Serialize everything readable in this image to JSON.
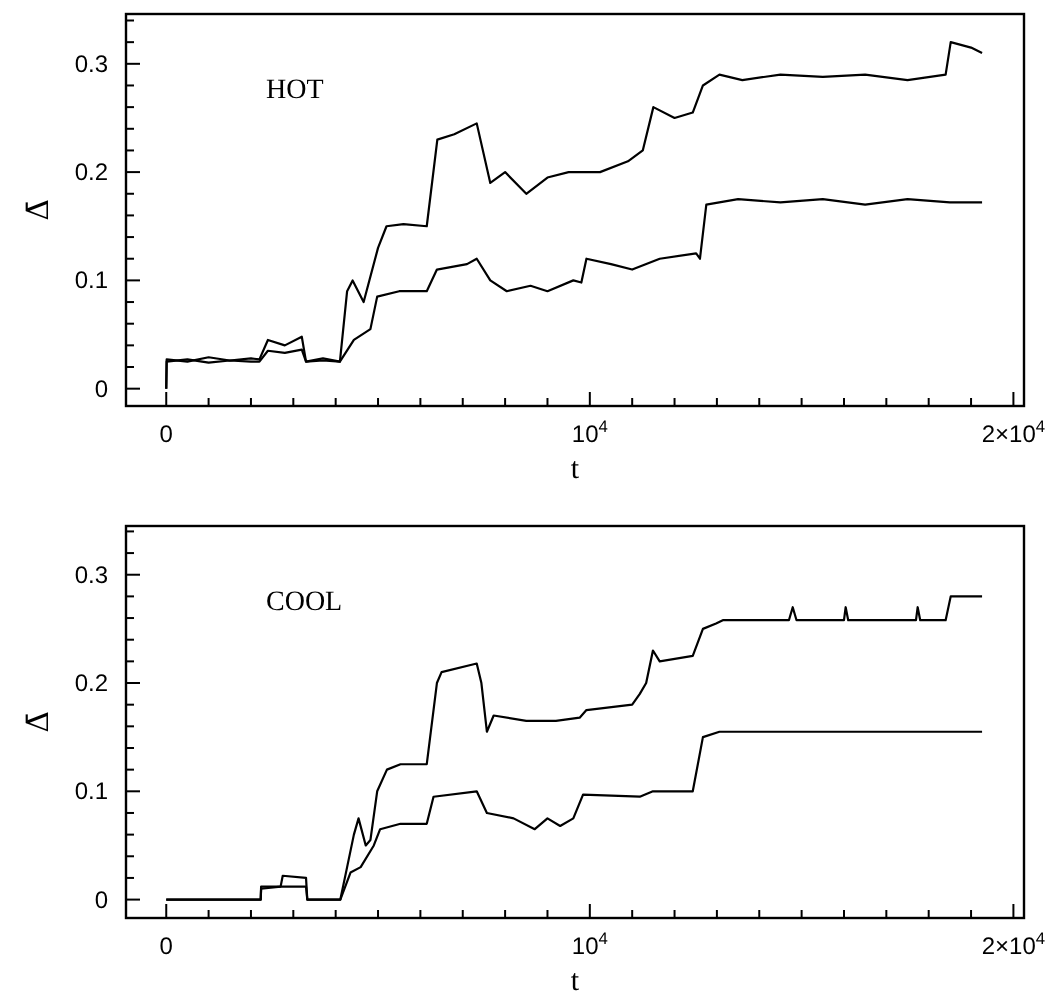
{
  "chart_data": [
    {
      "type": "line",
      "annotations": [
        "HOT"
      ],
      "xlabel": "t",
      "ylabel": "Δ̄",
      "xlim": [
        -950,
        20250
      ],
      "ylim": [
        -0.016,
        0.346
      ],
      "grid": false,
      "line_style": "solid",
      "xticks": [
        0,
        {
          "value": 1000,
          "label": null
        },
        {
          "value": 2000,
          "label": null
        },
        {
          "value": 3000,
          "label": null
        },
        {
          "value": 4000,
          "label": null
        },
        {
          "value": 5000,
          "label": null
        },
        {
          "value": 6000,
          "label": null
        },
        {
          "value": 7000,
          "label": null
        },
        {
          "value": 8000,
          "label": null
        },
        {
          "value": 9000,
          "label": null
        },
        {
          "value": 10000,
          "label": "10$^{4}$"
        },
        {
          "value": 11000,
          "label": null
        },
        {
          "value": 12000,
          "label": null
        },
        {
          "value": 13000,
          "label": null
        },
        {
          "value": 14000,
          "label": null
        },
        {
          "value": 15000,
          "label": null
        },
        {
          "value": 16000,
          "label": null
        },
        {
          "value": 17000,
          "label": null
        },
        {
          "value": 18000,
          "label": null
        },
        {
          "value": 19000,
          "label": null
        },
        {
          "value": 20000,
          "label": "2×10$^{4}$"
        }
      ],
      "yticks": [
        0,
        {
          "value": 0.02,
          "label": null
        },
        {
          "value": 0.04,
          "label": null
        },
        {
          "value": 0.06,
          "label": null
        },
        {
          "value": 0.08,
          "label": null
        },
        0.1,
        {
          "value": 0.12,
          "label": null
        },
        {
          "value": 0.14,
          "label": null
        },
        {
          "value": 0.16,
          "label": null
        },
        {
          "value": 0.18,
          "label": null
        },
        0.2,
        {
          "value": 0.22,
          "label": null
        },
        {
          "value": 0.24,
          "label": null
        },
        {
          "value": 0.26,
          "label": null
        },
        {
          "value": 0.28,
          "label": null
        },
        0.3,
        {
          "value": 0.32,
          "label": null
        },
        {
          "value": 0.34,
          "label": null
        }
      ],
      "series": [
        {
          "color": "#000000",
          "x": [
            0,
            10,
            500,
            1000,
            1500,
            2000,
            2200,
            2400,
            2800,
            3200,
            3300,
            3700,
            4100,
            4270,
            4400,
            4660,
            5000,
            5200,
            5600,
            6150,
            6400,
            6800,
            7330,
            7650,
            8000,
            8500,
            9000,
            9500,
            10240,
            10900,
            11250,
            11500,
            12000,
            12430,
            12670,
            13060,
            13600,
            14500,
            15500,
            16500,
            17500,
            18400,
            18520,
            19000,
            19260
          ],
          "values": [
            0,
            0.027,
            0.025,
            0.029,
            0.026,
            0.028,
            0.027,
            0.045,
            0.04,
            0.048,
            0.025,
            0.028,
            0.025,
            0.09,
            0.1,
            0.08,
            0.13,
            0.15,
            0.152,
            0.15,
            0.23,
            0.235,
            0.245,
            0.19,
            0.2,
            0.18,
            0.195,
            0.2,
            0.2,
            0.21,
            0.22,
            0.26,
            0.25,
            0.255,
            0.28,
            0.29,
            0.285,
            0.29,
            0.288,
            0.29,
            0.285,
            0.29,
            0.32,
            0.315,
            0.31
          ]
        },
        {
          "color": "#000000",
          "x": [
            0,
            10,
            500,
            1000,
            1500,
            2000,
            2200,
            2400,
            2800,
            3200,
            3300,
            3700,
            4100,
            4430,
            4820,
            4980,
            5500,
            6150,
            6390,
            7100,
            7330,
            7650,
            8040,
            8600,
            9000,
            9610,
            9800,
            9920,
            10500,
            11000,
            11650,
            12510,
            12600,
            12750,
            13500,
            14500,
            15500,
            16500,
            17500,
            18500,
            19260
          ],
          "values": [
            0,
            0.025,
            0.027,
            0.024,
            0.026,
            0.025,
            0.025,
            0.035,
            0.033,
            0.036,
            0.025,
            0.026,
            0.025,
            0.045,
            0.055,
            0.085,
            0.09,
            0.09,
            0.11,
            0.115,
            0.12,
            0.1,
            0.09,
            0.095,
            0.09,
            0.1,
            0.098,
            0.12,
            0.115,
            0.11,
            0.12,
            0.125,
            0.12,
            0.17,
            0.175,
            0.172,
            0.175,
            0.17,
            0.175,
            0.172,
            0.172
          ]
        }
      ]
    },
    {
      "type": "line",
      "annotations": [
        "COOL"
      ],
      "xlabel": "t",
      "ylabel": "Δ̄",
      "xlim": [
        -950,
        20250
      ],
      "ylim": [
        -0.017,
        0.345
      ],
      "grid": false,
      "line_style": "solid",
      "xticks": [
        0,
        {
          "value": 1000,
          "label": null
        },
        {
          "value": 2000,
          "label": null
        },
        {
          "value": 3000,
          "label": null
        },
        {
          "value": 4000,
          "label": null
        },
        {
          "value": 5000,
          "label": null
        },
        {
          "value": 6000,
          "label": null
        },
        {
          "value": 7000,
          "label": null
        },
        {
          "value": 8000,
          "label": null
        },
        {
          "value": 9000,
          "label": null
        },
        {
          "value": 10000,
          "label": "10$^{4}$"
        },
        {
          "value": 11000,
          "label": null
        },
        {
          "value": 12000,
          "label": null
        },
        {
          "value": 13000,
          "label": null
        },
        {
          "value": 14000,
          "label": null
        },
        {
          "value": 15000,
          "label": null
        },
        {
          "value": 16000,
          "label": null
        },
        {
          "value": 17000,
          "label": null
        },
        {
          "value": 18000,
          "label": null
        },
        {
          "value": 19000,
          "label": null
        },
        {
          "value": 20000,
          "label": "2×10$^{4}$"
        }
      ],
      "yticks": [
        0,
        {
          "value": 0.02,
          "label": null
        },
        {
          "value": 0.04,
          "label": null
        },
        {
          "value": 0.06,
          "label": null
        },
        {
          "value": 0.08,
          "label": null
        },
        0.1,
        {
          "value": 0.12,
          "label": null
        },
        {
          "value": 0.14,
          "label": null
        },
        {
          "value": 0.16,
          "label": null
        },
        {
          "value": 0.18,
          "label": null
        },
        0.2,
        {
          "value": 0.22,
          "label": null
        },
        {
          "value": 0.24,
          "label": null
        },
        {
          "value": 0.26,
          "label": null
        },
        {
          "value": 0.28,
          "label": null
        },
        0.3,
        {
          "value": 0.32,
          "label": null
        },
        {
          "value": 0.34,
          "label": null
        }
      ],
      "series": [
        {
          "color": "#000000",
          "x": [
            0,
            2230,
            2240,
            2700,
            2750,
            3300,
            3330,
            4110,
            4270,
            4430,
            4540,
            4710,
            4820,
            4980,
            5210,
            5530,
            6150,
            6390,
            6500,
            7330,
            7440,
            7570,
            7730,
            8500,
            9200,
            9760,
            9920,
            11000,
            11180,
            11330,
            11490,
            11650,
            12430,
            12670,
            12980,
            13140,
            14700,
            14790,
            14880,
            16000,
            16040,
            16100,
            17700,
            17740,
            17800,
            18400,
            18520,
            19260
          ],
          "values": [
            0,
            0,
            0.01,
            0.012,
            0.022,
            0.02,
            0,
            0,
            0.03,
            0.06,
            0.075,
            0.05,
            0.055,
            0.1,
            0.12,
            0.125,
            0.125,
            0.2,
            0.21,
            0.218,
            0.2,
            0.155,
            0.17,
            0.165,
            0.165,
            0.168,
            0.175,
            0.18,
            0.19,
            0.2,
            0.23,
            0.22,
            0.225,
            0.25,
            0.255,
            0.258,
            0.258,
            0.27,
            0.258,
            0.258,
            0.27,
            0.258,
            0.258,
            0.27,
            0.258,
            0.258,
            0.28,
            0.28
          ]
        },
        {
          "color": "#000000",
          "x": [
            0,
            2230,
            2240,
            3300,
            3330,
            4110,
            4350,
            4590,
            4900,
            5050,
            5530,
            6150,
            6310,
            7330,
            7570,
            8200,
            8700,
            9000,
            9300,
            9610,
            9840,
            11180,
            11490,
            12430,
            12670,
            13060,
            15000,
            17000,
            19260
          ],
          "values": [
            0,
            0,
            0.012,
            0.012,
            0,
            0,
            0.025,
            0.03,
            0.05,
            0.065,
            0.07,
            0.07,
            0.095,
            0.1,
            0.08,
            0.075,
            0.065,
            0.075,
            0.068,
            0.075,
            0.097,
            0.095,
            0.1,
            0.1,
            0.15,
            0.155,
            0.155,
            0.155,
            0.155
          ]
        }
      ]
    }
  ]
}
